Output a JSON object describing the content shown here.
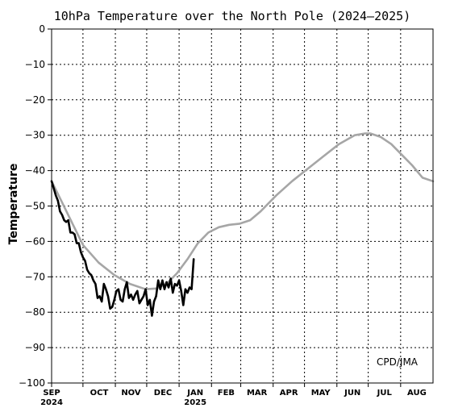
{
  "chart_data": {
    "type": "line",
    "title": "10hPa Temperature over the North Pole (2024–2025)",
    "ylabel": "Temperature",
    "credit": "CPD/JMA",
    "ylim": [
      -100,
      0
    ],
    "yticks": [
      0,
      -10,
      -20,
      -30,
      -40,
      -50,
      -60,
      -70,
      -80,
      -90,
      -100
    ],
    "ytick_labels": [
      "0",
      "−10",
      "−20",
      "−30",
      "−40",
      "−50",
      "−60",
      "−70",
      "−80",
      "−90",
      "−100"
    ],
    "x_range_days": [
      0,
      365
    ],
    "months": [
      {
        "label": "SEP",
        "day": 0
      },
      {
        "label": "OCT",
        "day": 30
      },
      {
        "label": "NOV",
        "day": 61
      },
      {
        "label": "DEC",
        "day": 91
      },
      {
        "label": "JAN",
        "day": 122
      },
      {
        "label": "FEB",
        "day": 153
      },
      {
        "label": "MAR",
        "day": 181
      },
      {
        "label": "APR",
        "day": 212
      },
      {
        "label": "MAY",
        "day": 242
      },
      {
        "label": "JUN",
        "day": 273
      },
      {
        "label": "JUL",
        "day": 303
      },
      {
        "label": "AUG",
        "day": 334
      }
    ],
    "years": [
      {
        "label": "2024",
        "day": 0
      },
      {
        "label": "2025",
        "day": 122
      }
    ],
    "grid": true,
    "colors": {
      "observed": "#000000",
      "climatology": "#a6a6a6"
    },
    "series": [
      {
        "kind": "climatology",
        "x": [
          0,
          10,
          20,
          30,
          45,
          60,
          75,
          90,
          100,
          110,
          120,
          130,
          140,
          150,
          160,
          170,
          180,
          190,
          200,
          215,
          230,
          245,
          260,
          275,
          290,
          300,
          305,
          315,
          325,
          335,
          345,
          355,
          365
        ],
        "y": [
          -43,
          -49,
          -55,
          -61,
          -66,
          -69.5,
          -72,
          -73.5,
          -73.3,
          -72,
          -69,
          -65,
          -60.5,
          -57.5,
          -56,
          -55.3,
          -55,
          -54,
          -51.5,
          -47,
          -43,
          -39.5,
          -36,
          -32.5,
          -30,
          -29.5,
          -29.5,
          -30.5,
          -32.5,
          -35.5,
          -38.5,
          -42,
          -43
        ]
      },
      {
        "kind": "observed",
        "x": [
          0,
          2,
          4,
          6,
          8,
          10,
          12,
          14,
          16,
          18,
          20,
          22,
          24,
          26,
          28,
          30,
          32,
          34,
          36,
          38,
          40,
          42,
          44,
          46,
          48,
          50,
          52,
          54,
          56,
          58,
          60,
          62,
          64,
          66,
          68,
          70,
          72,
          74,
          76,
          78,
          80,
          82,
          84,
          86,
          88,
          90,
          92,
          94,
          96,
          98,
          100,
          102,
          104,
          106,
          108,
          110,
          112,
          114,
          116,
          118,
          120,
          122,
          124,
          126,
          128,
          130,
          132,
          134,
          136
        ],
        "y": [
          -43,
          -45,
          -47,
          -48.5,
          -51.5,
          -52.5,
          -54,
          -54.5,
          -54,
          -57.5,
          -57.5,
          -58,
          -60.5,
          -60.5,
          -63,
          -64.5,
          -65.5,
          -68,
          -69,
          -69.5,
          -71,
          -72,
          -76,
          -75.5,
          -77,
          -72,
          -73.5,
          -75.5,
          -79,
          -78.5,
          -76.5,
          -74,
          -73.5,
          -76.5,
          -77,
          -73.5,
          -71.5,
          -76,
          -75,
          -76.5,
          -75,
          -74,
          -77.5,
          -76.5,
          -75.5,
          -73.5,
          -78,
          -76.5,
          -81,
          -77,
          -75.5,
          -71,
          -73.5,
          -71,
          -73.5,
          -71.5,
          -73,
          -70.5,
          -74.5,
          -72,
          -72.5,
          -71,
          -74,
          -78,
          -73.5,
          -74.5,
          -73,
          -73.5,
          -65
        ]
      }
    ]
  }
}
